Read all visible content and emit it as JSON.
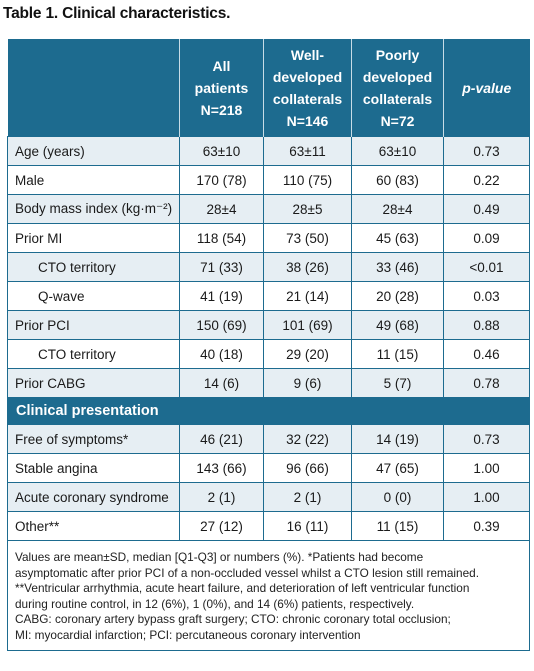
{
  "title": "Table 1. Clinical characteristics.",
  "headers": {
    "col0": "",
    "col1": [
      "All",
      "patients",
      "N=218"
    ],
    "col2": [
      "Well-",
      "developed",
      "collaterals",
      "N=146"
    ],
    "col3": [
      "Poorly",
      "developed",
      "collaterals",
      "N=72"
    ],
    "col4": "p-value"
  },
  "rows_a": [
    {
      "label": "Age (years)",
      "all": "63±10",
      "well": "63±11",
      "poor": "63±10",
      "p": "0.73",
      "indent": false
    },
    {
      "label": "Male",
      "all": "170 (78)",
      "well": "110 (75)",
      "poor": "60 (83)",
      "p": "0.22",
      "indent": false
    },
    {
      "label": "Body mass index (kg·m⁻²)",
      "all": "28±4",
      "well": "28±5",
      "poor": "28±4",
      "p": "0.49",
      "indent": false
    },
    {
      "label": "Prior MI",
      "all": "118 (54)",
      "well": "73 (50)",
      "poor": "45 (63)",
      "p": "0.09",
      "indent": false
    },
    {
      "label": "CTO territory",
      "all": "71 (33)",
      "well": "38 (26)",
      "poor": "33 (46)",
      "p": "<0.01",
      "indent": true
    },
    {
      "label": "Q-wave",
      "all": "41 (19)",
      "well": "21 (14)",
      "poor": "20 (28)",
      "p": "0.03",
      "indent": true
    },
    {
      "label": "Prior PCI",
      "all": "150 (69)",
      "well": "101 (69)",
      "poor": "49 (68)",
      "p": "0.88",
      "indent": false
    },
    {
      "label": "CTO territory",
      "all": "40 (18)",
      "well": "29 (20)",
      "poor": "11 (15)",
      "p": "0.46",
      "indent": true
    },
    {
      "label": "Prior CABG",
      "all": "14 (6)",
      "well": "9 (6)",
      "poor": "5 (7)",
      "p": "0.78",
      "indent": false
    }
  ],
  "section": "Clinical presentation",
  "rows_b": [
    {
      "label": "Free of symptoms*",
      "all": "46 (21)",
      "well": "32 (22)",
      "poor": "14 (19)",
      "p": "0.73",
      "indent": false
    },
    {
      "label": "Stable angina",
      "all": "143 (66)",
      "well": "96 (66)",
      "poor": "47 (65)",
      "p": "1.00",
      "indent": false
    },
    {
      "label": "Acute coronary syndrome",
      "all": "2 (1)",
      "well": "2 (1)",
      "poor": "0 (0)",
      "p": "1.00",
      "indent": false
    },
    {
      "label": "Other**",
      "all": "27 (12)",
      "well": "16 (11)",
      "poor": "11 (15)",
      "p": "0.39",
      "indent": false
    }
  ],
  "footnotes": [
    "Values are mean±SD, median [Q1-Q3] or numbers (%). *Patients had become",
    "asymptomatic after prior PCI of a non-occluded vessel whilst a CTO lesion still remained.",
    "**Ventricular arrhythmia, acute heart failure, and deterioration of left ventricular function",
    "during routine control, in 12 (6%), 1 (0%), and 14 (6%) patients, respectively.",
    "CABG: coronary artery bypass graft surgery; CTO: chronic coronary total occlusion;",
    "MI: myocardial infarction; PCI: percutaneous coronary intervention"
  ],
  "colors": {
    "header_bg": "#1d6b8f",
    "alt_row_bg": "#e6eef3"
  }
}
